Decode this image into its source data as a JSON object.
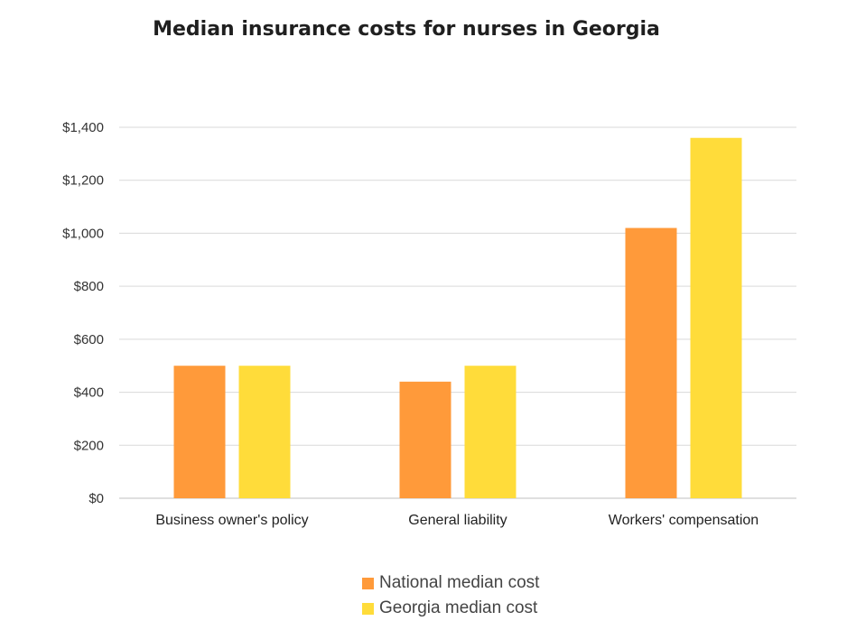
{
  "chart_data": {
    "type": "bar",
    "title": "Median insurance costs for nurses in Georgia",
    "categories": [
      "Business owner's policy",
      "General liability",
      "Workers' compensation"
    ],
    "series": [
      {
        "name": "National median cost",
        "color": "#FF9A3A",
        "values": [
          500,
          440,
          1020
        ]
      },
      {
        "name": "Georgia median cost",
        "color": "#FFDC3A",
        "values": [
          500,
          500,
          1360
        ]
      }
    ],
    "ylim": [
      0,
      1400
    ],
    "yticks": [
      "$0",
      "$200",
      "$400",
      "$600",
      "$800",
      "$1,000",
      "$1,200",
      "$1,400"
    ],
    "xlabel": "",
    "ylabel": "",
    "grid": true,
    "legend_position": "bottom"
  }
}
